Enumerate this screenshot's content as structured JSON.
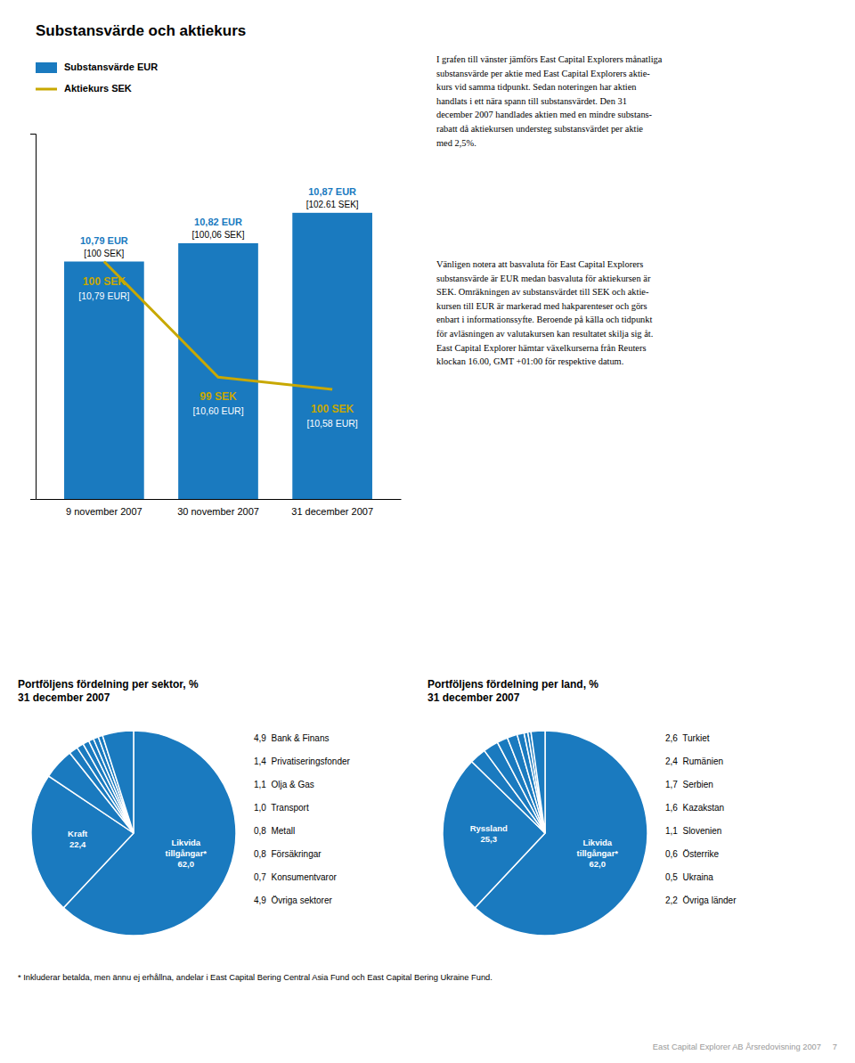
{
  "chart_data": [
    {
      "type": "bar",
      "title": "Substansvärde och aktiekurs",
      "categories": [
        "9 november 2007",
        "30 november 2007",
        "31 december 2007"
      ],
      "series": [
        {
          "name": "Substansvärde EUR",
          "type": "bar",
          "color": "#1a7abf",
          "values": [
            10.79,
            10.82,
            10.87
          ],
          "value_labels": [
            "10,79 EUR",
            "10,82 EUR",
            "10,87 EUR"
          ],
          "annotations": [
            "[100 SEK]",
            "[100,06 SEK]",
            "[102.61 SEK]"
          ]
        },
        {
          "name": "Aktiekurs SEK",
          "type": "line",
          "color": "#c8a800",
          "values": [
            10.79,
            10.6,
            10.58
          ],
          "value_labels": [
            "[10,79 EUR]",
            "[10,60 EUR]",
            "[10,58 EUR]"
          ],
          "annotations": [
            "100 SEK",
            "99 SEK",
            "100 SEK"
          ]
        }
      ],
      "ylim": [
        10.4,
        11.0
      ],
      "grid": false,
      "legend": "upper left",
      "data_labels": true,
      "tick_labels": "x",
      "annotations": [
        "I grafen till vänster jämförs East Capital Explorers månatliga\nsubstansvärde per aktie med East Capital Explorers aktie-\nkurs vid samma tidpunkt. Sedan noteringen har aktien\nhandlats i ett nära spann till substansvärdet. Den 31\ndecember 2007 handlades aktien med en mindre substans-\nrabatt då aktiekursen understeg substansvärdet per aktie\nmed 2,5%.",
        "Vänligen notera att basvaluta för East Capital Explorers\nsubstansvärde är EUR medan basvaluta för aktiekursen är\nSEK. Omräkningen av substansvärdet till SEK och aktie-\nkursen till EUR är markerad med hakparenteser och görs\nenbart i informationssyfte. Beroende på källa och tidpunkt\nför avläsningen av valutakursen kan resultatet skilja sig åt.\nEast Capital Explorer hämtar växelkurserna från Reuters\nklockan 16.00, GMT +01:00 för respektive datum."
      ]
    },
    {
      "type": "pie",
      "title": "Portföljens fördelning per sektor, %\n31 december 2007",
      "categories": [
        "Likvida\ntillgångar*\n62,0",
        "Kraft\n22,4",
        "4,9  Bank & Finans",
        "1,4  Privatiseringsfonder",
        "1,1  Olja & Gas",
        "1,0  Transport",
        "0,8  Metall",
        "0,8  Försäkringar",
        "0,7  Konsumentvaror",
        "4,9  Övriga sektorer"
      ],
      "values": [
        62.0,
        22.4,
        4.9,
        1.4,
        1.1,
        1.0,
        0.8,
        0.8,
        0.7,
        4.9
      ],
      "color": "#1a7abf"
    },
    {
      "type": "pie",
      "title": "Portföljens fördelning per land, %\n31 december 2007",
      "categories": [
        "Likvida\ntillgångar*\n62,0",
        "Ryssland\n25,3",
        "2,6  Turkiet",
        "2,4  Rumänien",
        "1,7  Serbien",
        "1,6  Kazakstan",
        "1,1  Slovenien",
        "0,6  Österrike",
        "0,5  Ukraina",
        "2,2  Övriga länder"
      ],
      "values": [
        62.0,
        25.3,
        2.6,
        2.4,
        1.7,
        1.6,
        1.1,
        0.6,
        0.5,
        2.2
      ],
      "color": "#1a7abf"
    }
  ],
  "footnote": "* Inkluderar betalda, men ännu ej erhållna, andelar i East Capital Bering Central Asia Fund och East Capital Bering Ukraine Fund.",
  "footer": "East Capital Explorer AB Årsredovisning 2007     7"
}
